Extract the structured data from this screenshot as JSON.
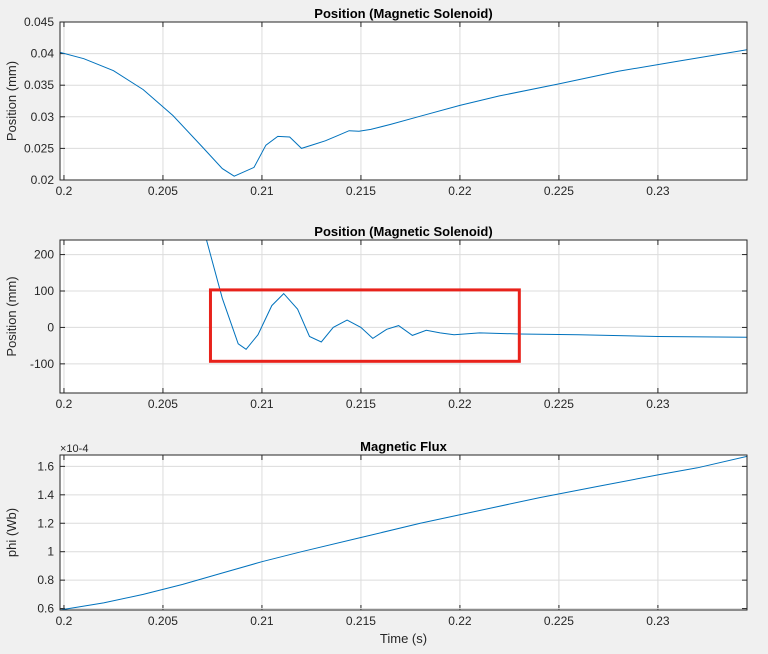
{
  "chart_data": [
    {
      "type": "line",
      "title": "Position (Magnetic Solenoid)",
      "xlabel": "",
      "ylabel": "Position (mm)",
      "xlim": [
        0.1998,
        0.2345
      ],
      "ylim": [
        0.02,
        0.045
      ],
      "x_ticks": [
        0.2,
        0.205,
        0.21,
        0.215,
        0.22,
        0.225,
        0.23
      ],
      "x_tick_labels": [
        "0.2",
        "0.205",
        "0.21",
        "0.215",
        "0.22",
        "0.225",
        "0.23"
      ],
      "y_ticks": [
        0.02,
        0.025,
        0.03,
        0.035,
        0.04,
        0.045
      ],
      "y_tick_labels": [
        "0.02",
        "0.025",
        "0.03",
        "0.035",
        "0.04",
        "0.045"
      ],
      "grid": true,
      "color": "#0072bd",
      "x": [
        0.1998,
        0.201,
        0.2025,
        0.204,
        0.2055,
        0.207,
        0.208,
        0.2086,
        0.2096,
        0.2102,
        0.2108,
        0.2114,
        0.212,
        0.2126,
        0.2132,
        0.2138,
        0.2144,
        0.2149,
        0.2155,
        0.2165,
        0.218,
        0.22,
        0.222,
        0.225,
        0.228,
        0.231,
        0.2345
      ],
      "y": [
        0.0402,
        0.0392,
        0.0373,
        0.0343,
        0.0302,
        0.0252,
        0.0218,
        0.0206,
        0.022,
        0.0255,
        0.0269,
        0.0268,
        0.025,
        0.0256,
        0.0262,
        0.027,
        0.0278,
        0.0277,
        0.028,
        0.0288,
        0.0301,
        0.0318,
        0.0333,
        0.0352,
        0.0372,
        0.0388,
        0.0406
      ]
    },
    {
      "type": "line",
      "title": "Position (Magnetic Solenoid)",
      "xlabel": "",
      "ylabel": "Position (mm)",
      "xlim": [
        0.1998,
        0.2345
      ],
      "ylim": [
        -180,
        240
      ],
      "x_ticks": [
        0.2,
        0.205,
        0.21,
        0.215,
        0.22,
        0.225,
        0.23
      ],
      "x_tick_labels": [
        "0.2",
        "0.205",
        "0.21",
        "0.215",
        "0.22",
        "0.225",
        "0.23"
      ],
      "y_ticks": [
        -100,
        0,
        100,
        200
      ],
      "y_tick_labels": [
        "-100",
        "0",
        "100",
        "200"
      ],
      "grid": true,
      "color": "#0072bd",
      "x": [
        0.2072,
        0.208,
        0.2088,
        0.2092,
        0.2098,
        0.2105,
        0.2111,
        0.2118,
        0.2124,
        0.213,
        0.2136,
        0.2143,
        0.215,
        0.2156,
        0.2163,
        0.2169,
        0.2176,
        0.2183,
        0.219,
        0.2197,
        0.221,
        0.223,
        0.226,
        0.23,
        0.2345
      ],
      "y": [
        240,
        80,
        -45,
        -60,
        -20,
        60,
        93,
        50,
        -25,
        -40,
        0,
        20,
        0,
        -30,
        -5,
        5,
        -22,
        -8,
        -15,
        -20,
        -15,
        -18,
        -20,
        -25,
        -27
      ],
      "highlight_box": {
        "x": [
          0.2074,
          0.223
        ],
        "y": [
          -93,
          103
        ],
        "color": "#e8221b"
      }
    },
    {
      "type": "line",
      "title": "Magnetic Flux",
      "xlabel": "Time (s)",
      "ylabel": "phi (Wb)",
      "y_multiplier": "×10-4",
      "xlim": [
        0.1998,
        0.2345
      ],
      "ylim": [
        0.59,
        1.68
      ],
      "x_ticks": [
        0.2,
        0.205,
        0.21,
        0.215,
        0.22,
        0.225,
        0.23
      ],
      "x_tick_labels": [
        "0.2",
        "0.205",
        "0.21",
        "0.215",
        "0.22",
        "0.225",
        "0.23"
      ],
      "y_ticks": [
        0.6,
        0.8,
        1.0,
        1.2,
        1.4,
        1.6
      ],
      "y_tick_labels": [
        "0.6",
        "0.8",
        "1",
        "1.2",
        "1.4",
        "1.6"
      ],
      "grid": true,
      "color": "#0072bd",
      "x": [
        0.1998,
        0.202,
        0.204,
        0.206,
        0.208,
        0.21,
        0.212,
        0.215,
        0.218,
        0.221,
        0.224,
        0.227,
        0.23,
        0.232,
        0.2345
      ],
      "y": [
        0.59,
        0.64,
        0.7,
        0.77,
        0.85,
        0.93,
        1.0,
        1.1,
        1.2,
        1.29,
        1.38,
        1.46,
        1.54,
        1.59,
        1.67
      ]
    }
  ]
}
